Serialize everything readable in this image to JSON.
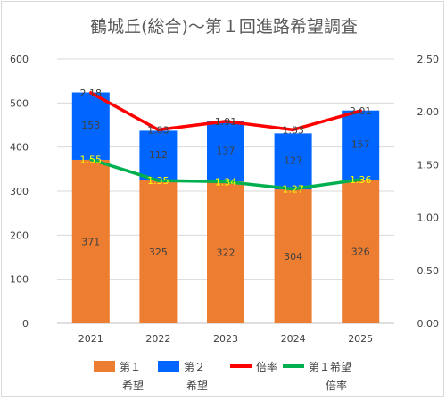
{
  "chart_data": {
    "type": "bar",
    "title": "鶴城丘(総合)～第１回進路希望調査",
    "categories": [
      "2021",
      "2022",
      "2023",
      "2024",
      "2025"
    ],
    "series": [
      {
        "name": "第１希望",
        "kind": "bar",
        "axis": "left",
        "color": "#ED7D31",
        "values": [
          371,
          325,
          322,
          304,
          326
        ]
      },
      {
        "name": "第２希望",
        "kind": "bar",
        "axis": "left",
        "color": "#0066FF",
        "values": [
          153,
          112,
          137,
          127,
          157
        ]
      },
      {
        "name": "倍率",
        "kind": "line",
        "axis": "right",
        "color": "#FF0000",
        "values": [
          2.18,
          1.83,
          1.91,
          1.83,
          2.01
        ],
        "labels": [
          "2.18",
          "1.83",
          "1.91",
          "1.83",
          "2.01"
        ]
      },
      {
        "name": "第１希望倍率",
        "kind": "line",
        "axis": "right",
        "color": "#00B050",
        "values": [
          1.55,
          1.35,
          1.34,
          1.27,
          1.36
        ],
        "labels": [
          "1.55",
          "1.35",
          "1.34",
          "1.27",
          "1.36"
        ]
      }
    ],
    "stacked": true,
    "ylim": [
      0,
      600
    ],
    "yticks": [
      "0",
      "100",
      "200",
      "300",
      "400",
      "500",
      "600"
    ],
    "y2lim": [
      0,
      2.5
    ],
    "y2ticks": [
      "0.00",
      "0.50",
      "1.00",
      "1.50",
      "2.00",
      "2.50"
    ],
    "grid": true,
    "legend_position": "bottom",
    "legend": [
      {
        "line1": "第１",
        "line2": "希望",
        "color": "#ED7D31",
        "marker": "rect"
      },
      {
        "line1": "第２",
        "line2": "希望",
        "color": "#0066FF",
        "marker": "rect"
      },
      {
        "line1": "倍率",
        "line2": "",
        "color": "#FF0000",
        "marker": "line"
      },
      {
        "line1": "第１希望",
        "line2": "倍率",
        "color": "#00B050",
        "marker": "line"
      }
    ]
  }
}
